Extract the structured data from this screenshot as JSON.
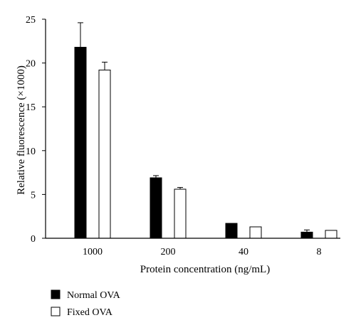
{
  "chart_data": {
    "type": "bar",
    "categories": [
      "1000",
      "200",
      "40",
      "8"
    ],
    "series": [
      {
        "name": "Normal OVA",
        "values": [
          21.8,
          6.9,
          1.7,
          0.7
        ],
        "errors": [
          2.8,
          0.25,
          0,
          0.25
        ],
        "color": "#000000"
      },
      {
        "name": "Fixed OVA",
        "values": [
          19.2,
          5.6,
          1.3,
          0.9
        ],
        "errors": [
          0.9,
          0.2,
          0,
          0
        ],
        "color": "#ffffff"
      }
    ],
    "title": "",
    "xlabel": "Protein concentration (ng/mL)",
    "ylabel": "Relative fluorescence (×1000)",
    "ylim": [
      0,
      25
    ],
    "yticks": [
      "0",
      "5",
      "10",
      "15",
      "20",
      "25"
    ],
    "grid": false,
    "legend_position": "bottom-left"
  }
}
